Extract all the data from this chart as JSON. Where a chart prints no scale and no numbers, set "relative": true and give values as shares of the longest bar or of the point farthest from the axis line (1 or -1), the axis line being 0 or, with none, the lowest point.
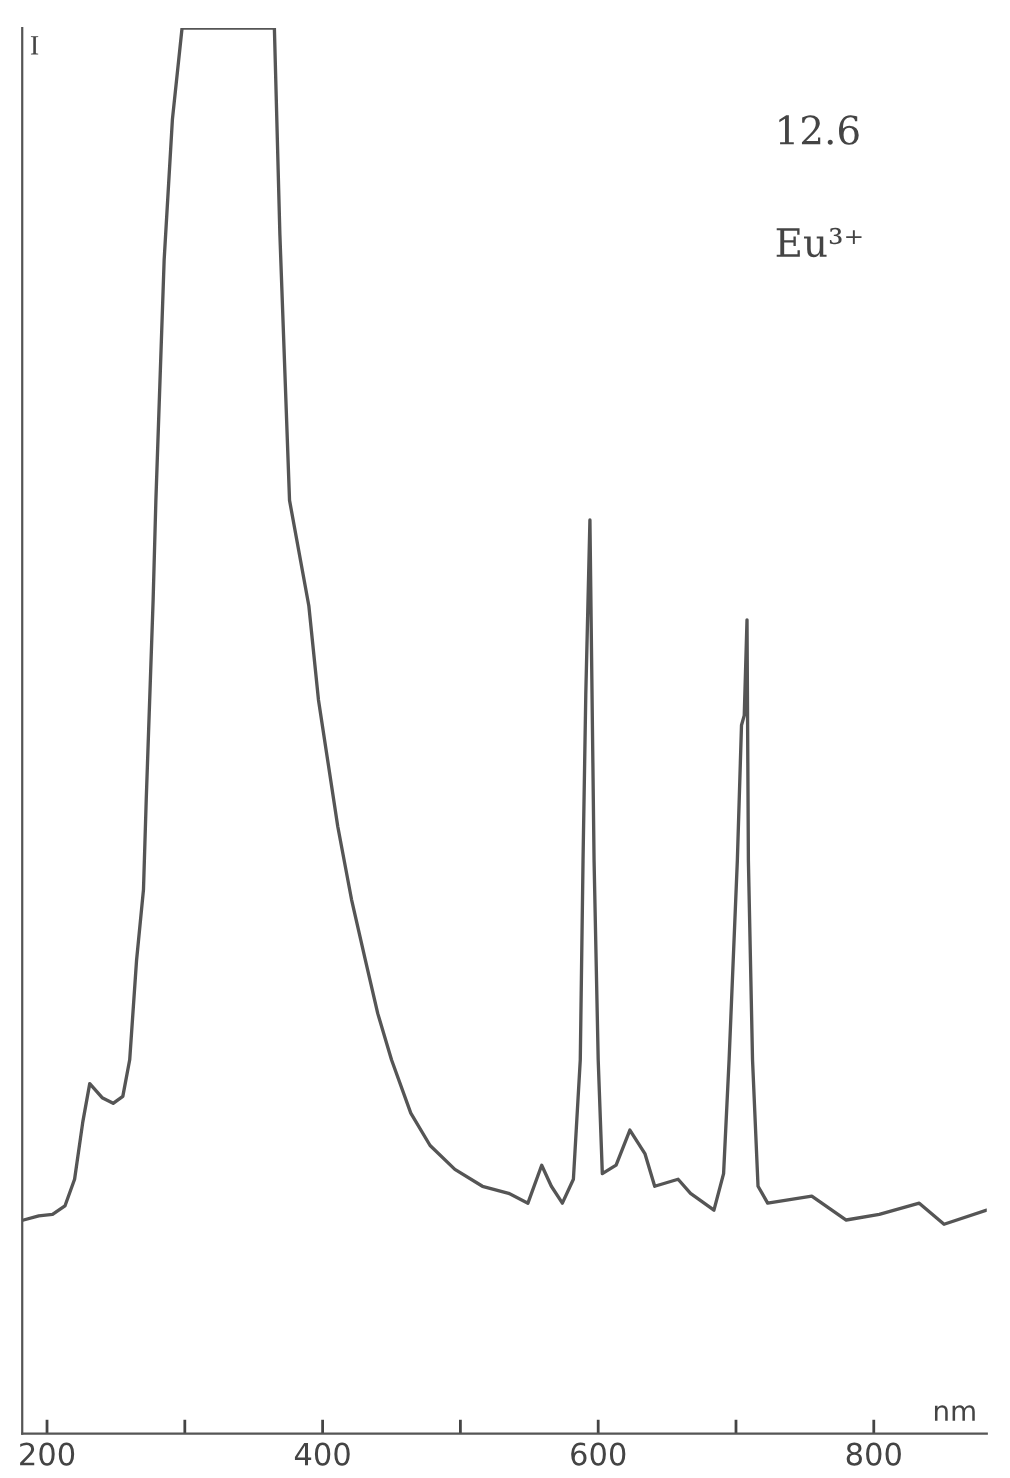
{
  "chart_data": {
    "type": "line",
    "relative": true,
    "xlabel": "nm",
    "ylabel": "I",
    "annotations": [
      "12.6",
      "Eu³⁺"
    ],
    "xlim": [
      182,
      882
    ],
    "xticks": [
      200,
      {
        "value": 300,
        "label": null
      },
      400,
      {
        "value": 500,
        "label": null
      },
      600,
      {
        "value": 700,
        "label": null
      },
      800
    ],
    "grid": false,
    "legend": false,
    "marker": "none",
    "line_style": "solid",
    "series": [
      {
        "color": "#555555",
        "x": [
          183,
          194,
          204,
          213,
          220,
          226,
          231,
          240,
          248,
          255,
          260,
          265,
          270,
          272,
          277,
          279,
          285,
          291,
          298,
          365,
          369,
          376,
          390,
          397,
          411,
          421,
          431,
          440,
          450,
          464,
          478,
          496,
          516,
          535,
          549,
          559,
          566,
          574,
          582,
          587,
          589,
          591,
          594,
          597,
          600,
          603,
          613,
          623,
          634,
          641,
          658,
          667,
          684,
          691,
          695,
          701,
          704,
          706,
          708,
          709,
          712,
          716,
          723,
          755,
          780,
          804,
          833,
          851,
          882
        ],
        "values": [
          0.152,
          0.155,
          0.156,
          0.162,
          0.181,
          0.222,
          0.249,
          0.239,
          0.235,
          0.24,
          0.266,
          0.337,
          0.387,
          0.451,
          0.593,
          0.664,
          0.835,
          0.935,
          1,
          1,
          0.853,
          0.664,
          0.589,
          0.522,
          0.432,
          0.38,
          0.337,
          0.299,
          0.266,
          0.228,
          0.205,
          0.188,
          0.176,
          0.171,
          0.164,
          0.191,
          0.176,
          0.164,
          0.181,
          0.266,
          0.408,
          0.526,
          0.65,
          0.408,
          0.266,
          0.185,
          0.191,
          0.216,
          0.199,
          0.176,
          0.181,
          0.171,
          0.159,
          0.185,
          0.266,
          0.408,
          0.504,
          0.511,
          0.579,
          0.408,
          0.266,
          0.176,
          0.164,
          0.169,
          0.152,
          0.156,
          0.164,
          0.149,
          0.159
        ]
      }
    ]
  }
}
